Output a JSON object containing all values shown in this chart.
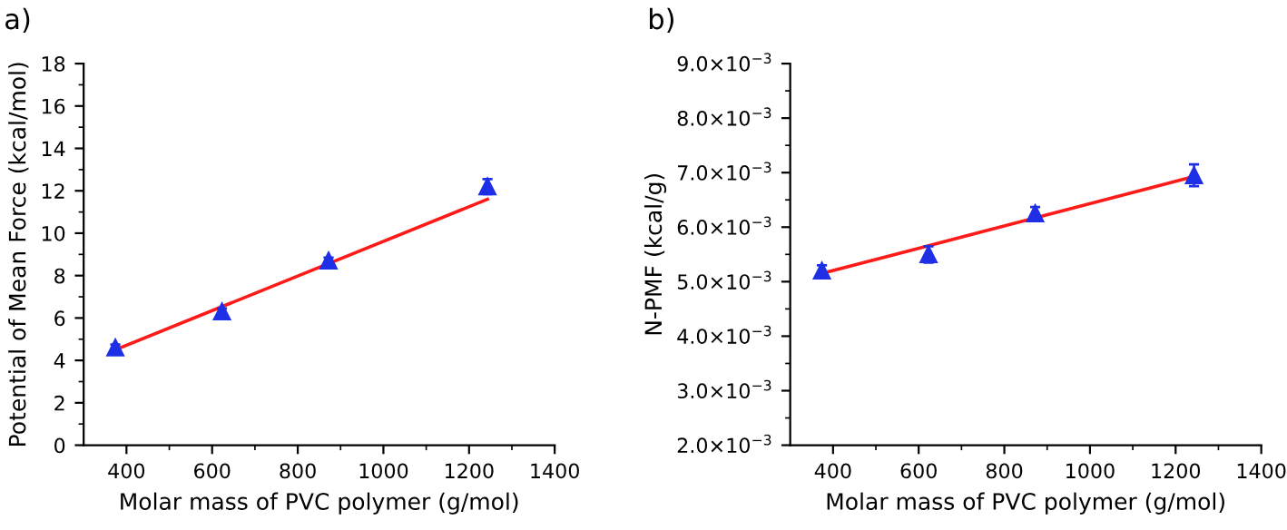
{
  "chart_data": [
    {
      "type": "scatter",
      "title": "a)",
      "xlabel": "Molar mass of PVC polymer (g/mol)",
      "ylabel": "Potential of Mean Force (kcal/mol)",
      "xlim": [
        300,
        1400
      ],
      "xticks": [
        400,
        600,
        800,
        1000,
        1200,
        1400
      ],
      "ylim": [
        0,
        18
      ],
      "yticks": [
        0,
        2,
        4,
        6,
        8,
        10,
        12,
        14,
        16,
        18
      ],
      "grid": false,
      "legend": false,
      "series": [
        {
          "color": "#1f2fe6",
          "marker": "triangle",
          "x": [
            374,
            623,
            872,
            1243
          ],
          "values": [
            4.6,
            6.3,
            8.7,
            12.2
          ],
          "errors": [
            0.15,
            0.15,
            0.15,
            0.35
          ]
        },
        {
          "type": "line",
          "color": "#ff1a1a",
          "line_style": "solid",
          "marker": "none",
          "x": [
            374,
            1243
          ],
          "values": [
            4.5,
            11.6
          ]
        }
      ]
    },
    {
      "type": "scatter",
      "title": "b)",
      "xlabel": "Molar mass of PVC polymer (g/mol)",
      "ylabel": "N-PMF (kcal/g)",
      "xlim": [
        300,
        1400
      ],
      "xticks": [
        400,
        600,
        800,
        1000,
        1200,
        1400
      ],
      "ylim": [
        0.002,
        0.009
      ],
      "yticks": [
        {
          "value": 0.002,
          "label": "2.0×10$^{−3}$"
        },
        {
          "value": 0.003,
          "label": "3.0×10$^{−3}$"
        },
        {
          "value": 0.004,
          "label": "4.0×10$^{−3}$"
        },
        {
          "value": 0.005,
          "label": "5.0×10$^{−3}$"
        },
        {
          "value": 0.006,
          "label": "6.0×10$^{−3}$"
        },
        {
          "value": 0.007,
          "label": "7.0×10$^{−3}$"
        },
        {
          "value": 0.008,
          "label": "8.0×10$^{−3}$"
        },
        {
          "value": 0.009,
          "label": "9.0×10$^{−3}$"
        }
      ],
      "grid": false,
      "legend": false,
      "series": [
        {
          "color": "#1f2fe6",
          "marker": "triangle",
          "x": [
            374,
            623,
            872,
            1243
          ],
          "values": [
            0.0052,
            0.0055,
            0.00625,
            0.00695
          ],
          "errors": [
            0.0001,
            0.00015,
            0.00012,
            0.0002
          ]
        },
        {
          "type": "line",
          "color": "#ff1a1a",
          "line_style": "solid",
          "marker": "none",
          "x": [
            374,
            1243
          ],
          "values": [
            0.00515,
            0.00693
          ]
        }
      ]
    }
  ]
}
